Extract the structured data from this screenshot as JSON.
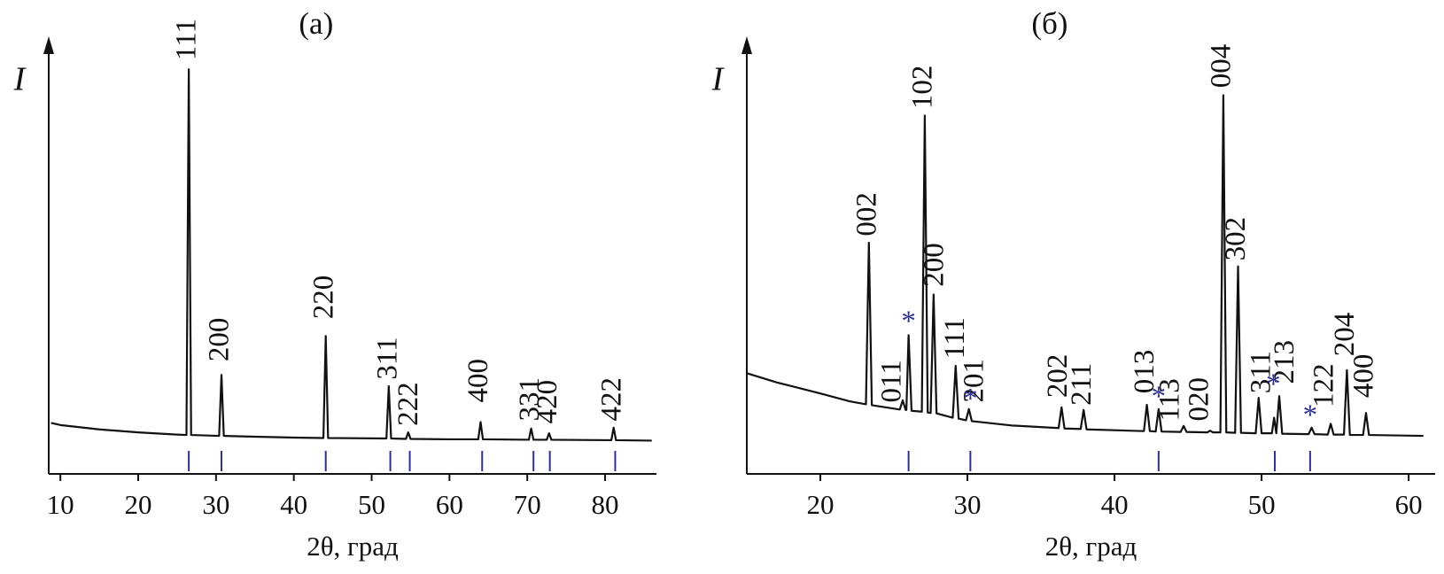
{
  "chart_data": [
    {
      "type": "line",
      "title": "(a)",
      "xlabel": "2θ, град",
      "ylabel": "I",
      "xlim": [
        8.5,
        86.6
      ],
      "xticks": [
        10,
        20,
        30,
        40,
        50,
        60,
        70,
        80
      ],
      "ylim": [
        0,
        100
      ],
      "color": "#111111",
      "x": [
        8.8,
        10,
        15,
        20,
        25,
        26.2,
        26.5,
        26.8,
        30.4,
        30.7,
        31.0,
        35,
        40,
        43.8,
        44.1,
        44.4,
        51.9,
        52.2,
        52.5,
        54.4,
        54.7,
        55.0,
        60,
        63.7,
        64.0,
        64.3,
        70.2,
        70.5,
        70.8,
        72.5,
        72.8,
        73.1,
        80.8,
        81.1,
        81.4,
        86
      ],
      "values": [
        11.8,
        11.3,
        10.3,
        9.6,
        9.1,
        9.0,
        93.6,
        9.0,
        8.8,
        22.9,
        8.8,
        8.6,
        8.4,
        8.3,
        31.9,
        8.3,
        8.2,
        20.3,
        8.2,
        8.1,
        9.6,
        8.1,
        8.0,
        8.0,
        12.0,
        8.0,
        7.9,
        10.5,
        7.9,
        7.9,
        9.4,
        7.9,
        7.8,
        10.7,
        7.8,
        7.7
      ],
      "reference_lines": {
        "color": "#2e3192",
        "positions": [
          26.5,
          30.7,
          44.1,
          52.4,
          54.9,
          64.2,
          70.8,
          72.9,
          81.3
        ]
      },
      "annotations": [
        {
          "text": "111",
          "x": 26.5,
          "y": 95.7
        },
        {
          "text": "200",
          "x": 30.7,
          "y": 26
        },
        {
          "text": "220",
          "x": 44.1,
          "y": 35.8
        },
        {
          "text": "311",
          "x": 52.3,
          "y": 21.8
        },
        {
          "text": "222",
          "x": 55.0,
          "y": 11.1
        },
        {
          "text": "400",
          "x": 64.0,
          "y": 16.5
        },
        {
          "text": "331",
          "x": 70.6,
          "y": 12.2
        },
        {
          "text": "420",
          "x": 72.9,
          "y": 11.6
        },
        {
          "text": "422",
          "x": 81.1,
          "y": 12.2
        }
      ]
    },
    {
      "type": "line",
      "title": "(б)",
      "xlabel": "2θ, град",
      "ylabel": "I",
      "xlim": [
        15,
        61.8
      ],
      "xticks": [
        20,
        30,
        40,
        50,
        60
      ],
      "ylim": [
        0,
        100
      ],
      "color": "#111111",
      "x": [
        15,
        17,
        20,
        22,
        23.1,
        23.3,
        23.5,
        25.4,
        25.6,
        25.8,
        25.85,
        26.0,
        26.2,
        26.9,
        27.1,
        27.3,
        27.5,
        27.7,
        27.9,
        29.0,
        29.2,
        29.4,
        29.9,
        30.1,
        30.3,
        33,
        36.2,
        36.4,
        36.6,
        37.7,
        37.9,
        38.1,
        42.0,
        42.2,
        42.4,
        42.8,
        43.0,
        43.2,
        44.5,
        44.7,
        44.9,
        46.3,
        46.5,
        46.7,
        47.2,
        47.4,
        47.6,
        48.2,
        48.4,
        48.6,
        49.6,
        49.8,
        50.0,
        50.7,
        50.85,
        51.0,
        51.2,
        51.4,
        53.2,
        53.4,
        53.6,
        54.5,
        54.7,
        54.9,
        55.6,
        55.8,
        56.0,
        56.9,
        57.1,
        57.3,
        61
      ],
      "values": [
        23.3,
        21.2,
        18.6,
        16.8,
        16.1,
        53.5,
        15.9,
        14.9,
        17.0,
        14.8,
        14.8,
        32.1,
        14.6,
        14.4,
        82.9,
        14.2,
        14.1,
        41.5,
        14.0,
        13.0,
        25.0,
        12.8,
        12.4,
        15.0,
        12.2,
        11.2,
        10.6,
        15.4,
        10.5,
        10.4,
        14.8,
        10.3,
        9.9,
        16.0,
        9.9,
        9.8,
        15.0,
        9.8,
        9.7,
        11.1,
        9.7,
        9.6,
        10.0,
        9.6,
        9.6,
        87.6,
        9.6,
        9.5,
        48.0,
        9.5,
        9.4,
        17.6,
        9.4,
        9.4,
        13.0,
        9.4,
        18.0,
        9.3,
        9.2,
        10.7,
        9.2,
        9.1,
        11.6,
        9.1,
        9.1,
        24.0,
        9.0,
        9.0,
        14.1,
        9.0,
        8.8
      ],
      "reference_lines": {
        "color": "#2e3192",
        "positions": [
          26.0,
          30.2,
          43.0,
          50.9,
          53.3
        ]
      },
      "markers": [
        {
          "label": "*",
          "x": 26.0,
          "y": 36
        },
        {
          "label": "*",
          "x": 30.2,
          "y": 18
        },
        {
          "label": "*",
          "x": 43.0,
          "y": 18.6
        },
        {
          "label": "*",
          "x": 50.8,
          "y": 21.4
        },
        {
          "label": "*",
          "x": 53.3,
          "y": 14.3
        }
      ],
      "annotations": [
        {
          "text": "002",
          "x": 23.3,
          "y": 55
        },
        {
          "text": "011",
          "x": 25.0,
          "y": 16.5
        },
        {
          "text": "102",
          "x": 27.1,
          "y": 84.4
        },
        {
          "text": "200",
          "x": 27.9,
          "y": 43.3
        },
        {
          "text": "111",
          "x": 29.3,
          "y": 26.6
        },
        {
          "text": "201",
          "x": 30.6,
          "y": 16.5
        },
        {
          "text": "202",
          "x": 36.3,
          "y": 17.6
        },
        {
          "text": "211",
          "x": 37.9,
          "y": 15.8
        },
        {
          "text": "013",
          "x": 42.2,
          "y": 18.6
        },
        {
          "text": "113",
          "x": 43.9,
          "y": 12.2
        },
        {
          "text": "020",
          "x": 45.9,
          "y": 12.2
        },
        {
          "text": "004",
          "x": 47.4,
          "y": 89.3
        },
        {
          "text": "302",
          "x": 48.4,
          "y": 49.3
        },
        {
          "text": "311",
          "x": 50.1,
          "y": 18.6
        },
        {
          "text": "213",
          "x": 51.7,
          "y": 20.8
        },
        {
          "text": "122",
          "x": 54.4,
          "y": 15.4
        },
        {
          "text": "204",
          "x": 55.8,
          "y": 27.2
        },
        {
          "text": "400",
          "x": 57.1,
          "y": 17.6
        }
      ]
    }
  ]
}
